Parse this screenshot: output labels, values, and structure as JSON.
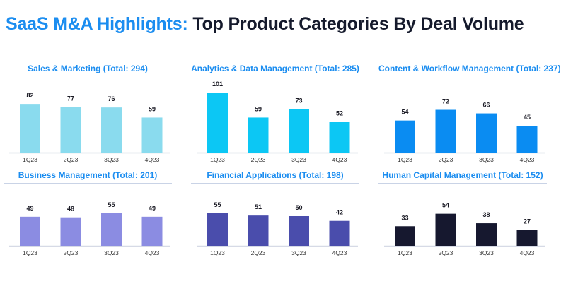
{
  "headline": {
    "highlight": "SaaS M&A Highlights:",
    "rest": "Top Product Categories By Deal Volume"
  },
  "chart_data": [
    {
      "type": "bar",
      "title": "Sales & Marketing (Total: 294)",
      "categories": [
        "1Q23",
        "2Q23",
        "3Q23",
        "4Q23"
      ],
      "values": [
        82,
        77,
        76,
        59
      ],
      "color": "#8adbee"
    },
    {
      "type": "bar",
      "title": "Analytics & Data Management (Total: 285)",
      "categories": [
        "1Q23",
        "2Q23",
        "3Q23",
        "4Q23"
      ],
      "values": [
        101,
        59,
        73,
        52
      ],
      "color": "#0cc7f4"
    },
    {
      "type": "bar",
      "title": "Content & Workflow Management (Total: 237)",
      "categories": [
        "1Q23",
        "2Q23",
        "3Q23",
        "4Q23"
      ],
      "values": [
        54,
        72,
        66,
        45
      ],
      "color": "#0a8cf2"
    },
    {
      "type": "bar",
      "title": "Business Management (Total: 201)",
      "categories": [
        "1Q23",
        "2Q23",
        "3Q23",
        "4Q23"
      ],
      "values": [
        49,
        48,
        55,
        49
      ],
      "color": "#8b8ce2"
    },
    {
      "type": "bar",
      "title": "Financial Applications (Total: 198)",
      "categories": [
        "1Q23",
        "2Q23",
        "3Q23",
        "4Q23"
      ],
      "values": [
        55,
        51,
        50,
        42
      ],
      "color": "#4a4dac"
    },
    {
      "type": "bar",
      "title": "Human Capital Management (Total: 152)",
      "categories": [
        "1Q23",
        "2Q23",
        "3Q23",
        "4Q23"
      ],
      "values": [
        33,
        54,
        38,
        27
      ],
      "color": "#16182f"
    }
  ]
}
